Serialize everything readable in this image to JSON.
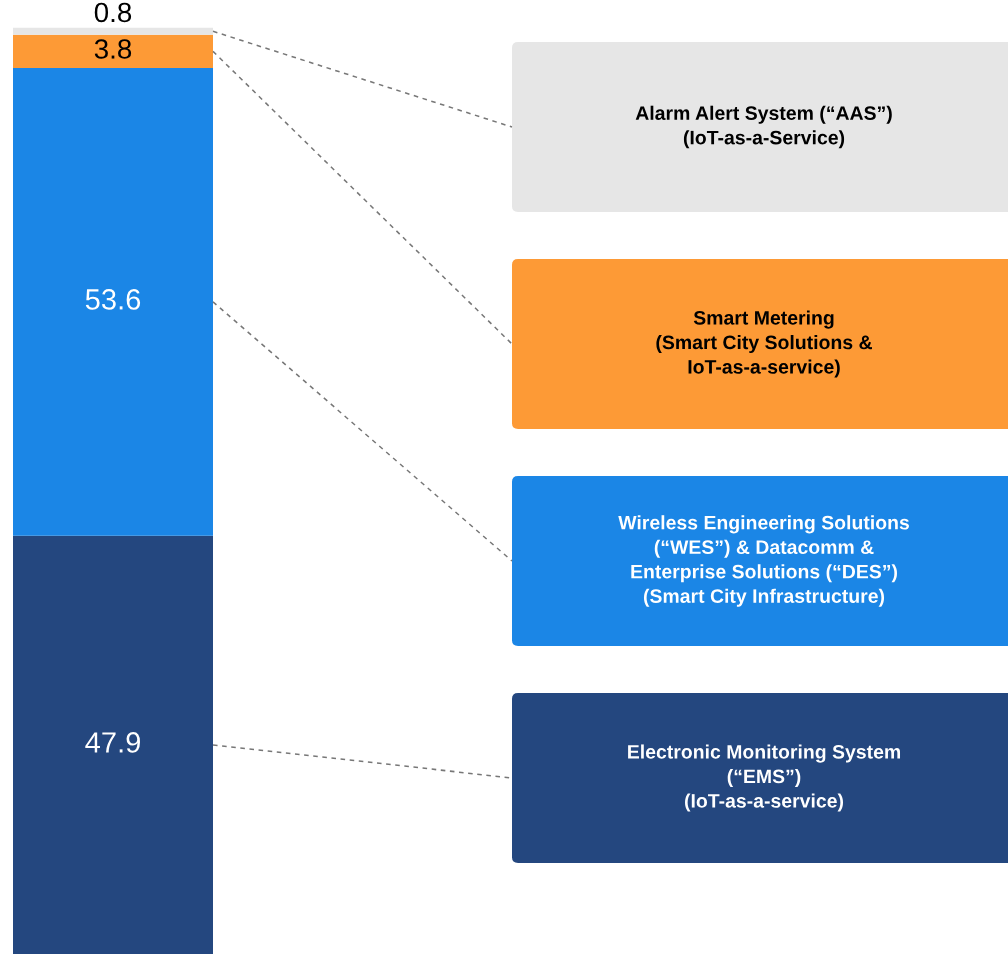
{
  "chart_data": {
    "type": "bar",
    "stacked": true,
    "categories": [
      null
    ],
    "data_labels": true,
    "legend": "right",
    "series": [
      {
        "name": "Electronic Monitoring System\n(“EMS”)\n(IoT-as-a-service)",
        "color": "#24477f",
        "values": [
          47.9
        ]
      },
      {
        "name": "Wireless Engineering Solutions\n(“WES”) & Datacomm &\nEnterprise Solutions (“DES”)\n(Smart City Infrastructure)",
        "color": "#1b86e6",
        "values": [
          53.6
        ]
      },
      {
        "name": "Smart Metering\n(Smart City Solutions &\nIoT-as-a-service)",
        "color": "#fd9a36",
        "values": [
          3.8
        ]
      },
      {
        "name": "Alarm Alert System (“AAS”)\n(IoT-as-a-Service)",
        "color": "#e6e6e6",
        "values": [
          0.8
        ]
      }
    ]
  }
}
